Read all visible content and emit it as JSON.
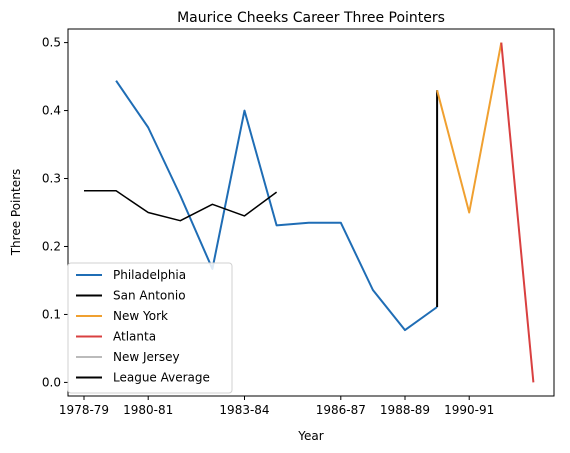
{
  "chart_data": {
    "type": "line",
    "title": "Maurice Cheeks Career Three Pointers",
    "xlabel": "Year",
    "ylabel": "Three Pointers",
    "x_ticks": [
      "1978-79",
      "1980-81",
      "1983-84",
      "1986-87",
      "1988-89",
      "1990-91"
    ],
    "y_ticks": [
      "0.0",
      "0.1",
      "0.2",
      "0.3",
      "0.4",
      "0.5"
    ],
    "ylim": [
      -0.02,
      0.52
    ],
    "grid": false,
    "legend_position": "lower-left",
    "series": [
      {
        "name": "Philadelphia",
        "color": "#1f6db5",
        "points": [
          {
            "x": "1979-80",
            "y": 0.444
          },
          {
            "x": "1980-81",
            "y": 0.375
          },
          {
            "x": "1981-82",
            "y": 0.275
          },
          {
            "x": "1982-83",
            "y": 0.167
          },
          {
            "x": "1983-84",
            "y": 0.4
          },
          {
            "x": "1984-85",
            "y": 0.231
          },
          {
            "x": "1985-86",
            "y": 0.235
          },
          {
            "x": "1986-87",
            "y": 0.235
          },
          {
            "x": "1987-88",
            "y": 0.136
          },
          {
            "x": "1988-89",
            "y": 0.077
          },
          {
            "x": "1989-90",
            "y": 0.111
          }
        ]
      },
      {
        "name": "San Antonio",
        "color": "#000000",
        "points": [
          {
            "x": "1989-90",
            "y": 0.111
          },
          {
            "x": "1989-90",
            "y": 0.43
          }
        ]
      },
      {
        "name": "New York",
        "color": "#f0a030",
        "points": [
          {
            "x": "1989-90",
            "y": 0.43
          },
          {
            "x": "1990-91",
            "y": 0.25
          },
          {
            "x": "1991-92",
            "y": 0.5
          }
        ]
      },
      {
        "name": "Atlanta",
        "color": "#d94040",
        "points": [
          {
            "x": "1991-92",
            "y": 0.5
          },
          {
            "x": "1992-93",
            "y": 0.0
          }
        ]
      },
      {
        "name": "New Jersey",
        "color": "#bbbbbb",
        "points": []
      },
      {
        "name": "League Average",
        "color": "#000000",
        "points": [
          {
            "x": "1978-79",
            "y": 0.282
          },
          {
            "x": "1979-80",
            "y": 0.282
          },
          {
            "x": "1980-81",
            "y": 0.25
          },
          {
            "x": "1981-82",
            "y": 0.238
          },
          {
            "x": "1982-83",
            "y": 0.262
          },
          {
            "x": "1983-84",
            "y": 0.245
          },
          {
            "x": "1984-85",
            "y": 0.28
          }
        ]
      }
    ]
  }
}
